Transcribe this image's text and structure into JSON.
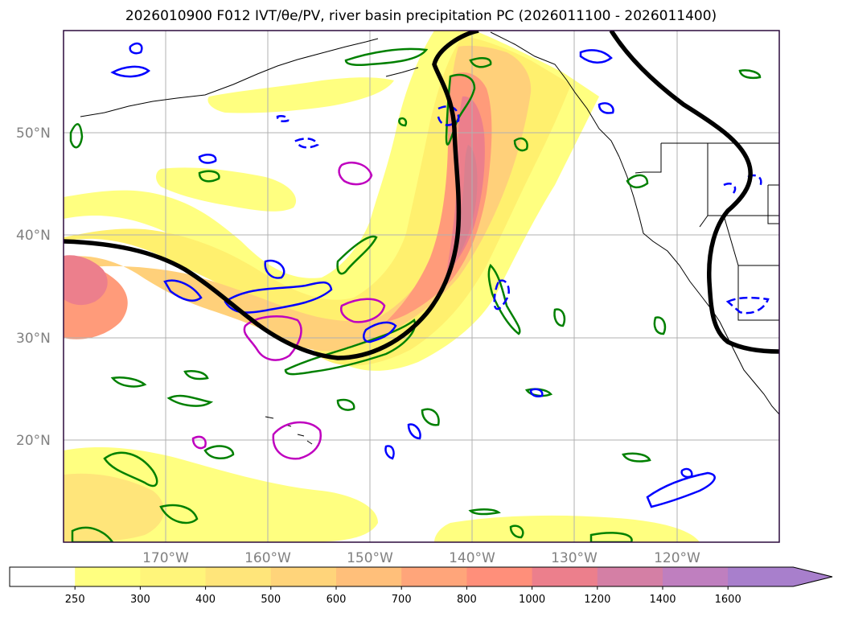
{
  "title": "2026010900 F012 IVT/θe/PV, river basin precipitation PC (2026011100 - 2026011400)",
  "map": {
    "lon_range": [
      -180,
      -110
    ],
    "lat_range": [
      10,
      60
    ],
    "lat_labels": [
      "50°N",
      "40°N",
      "30°N",
      "20°N"
    ],
    "lat_values": [
      50,
      40,
      30,
      20
    ],
    "lon_labels": [
      "170°W",
      "160°W",
      "150°W",
      "140°W",
      "130°W",
      "120°W"
    ],
    "lon_values": [
      -170,
      -160,
      -150,
      -140,
      -130,
      -120
    ],
    "grid": true
  },
  "colorbar": {
    "levels": [
      "250",
      "300",
      "400",
      "500",
      "600",
      "700",
      "800",
      "1000",
      "1200",
      "1400",
      "1600"
    ],
    "colors": [
      "#ffffff",
      "#ffff80",
      "#fff57a",
      "#ffe57a",
      "#ffd47a",
      "#ffbf7a",
      "#ffa57a",
      "#ff8f7a",
      "#ec7f8c",
      "#d47fa5",
      "#bf7fbf",
      "#a87fcc"
    ],
    "extend": "max"
  },
  "colors": {
    "frame": "#2b0a3d",
    "grid": "#b0b0b0",
    "pv_contour": "#0000ff",
    "theta_contour": "#008000",
    "pc_contour": "#bf00bf",
    "front_line": "#000000"
  }
}
